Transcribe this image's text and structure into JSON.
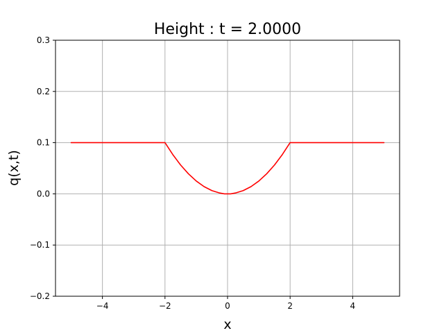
{
  "chart_data": {
    "type": "line",
    "title": "Height : t = 2.0000",
    "xlabel": "x",
    "ylabel": "q(x,t)",
    "xlim": [
      -5.5,
      5.5
    ],
    "ylim": [
      -0.2,
      0.3
    ],
    "grid": true,
    "x_ticks": [
      -4,
      -2,
      0,
      2,
      4
    ],
    "x_tick_labels": [
      "−4",
      "−2",
      "0",
      "2",
      "4"
    ],
    "y_ticks": [
      -0.2,
      -0.1,
      0.0,
      0.1,
      0.2,
      0.3
    ],
    "y_tick_labels": [
      "−0.2",
      "−0.1",
      "0.0",
      "0.1",
      "0.2",
      "0.3"
    ],
    "series": [
      {
        "color": "#ff0000",
        "x": [
          -5.0,
          -4.0,
          -3.0,
          -2.1,
          -2.0,
          -1.75,
          -1.5,
          -1.25,
          -1.0,
          -0.75,
          -0.5,
          -0.25,
          -0.1,
          0.0,
          0.1,
          0.25,
          0.5,
          0.75,
          1.0,
          1.25,
          1.5,
          1.75,
          2.0,
          2.1,
          3.0,
          4.0,
          5.0
        ],
        "y": [
          0.1,
          0.1,
          0.1,
          0.1,
          0.1,
          0.0766,
          0.0563,
          0.0391,
          0.025,
          0.0141,
          0.0063,
          0.0016,
          0.0,
          0.0,
          0.0,
          0.0016,
          0.0063,
          0.0141,
          0.025,
          0.0391,
          0.0563,
          0.0766,
          0.1,
          0.1,
          0.1,
          0.1,
          0.1
        ]
      }
    ]
  }
}
